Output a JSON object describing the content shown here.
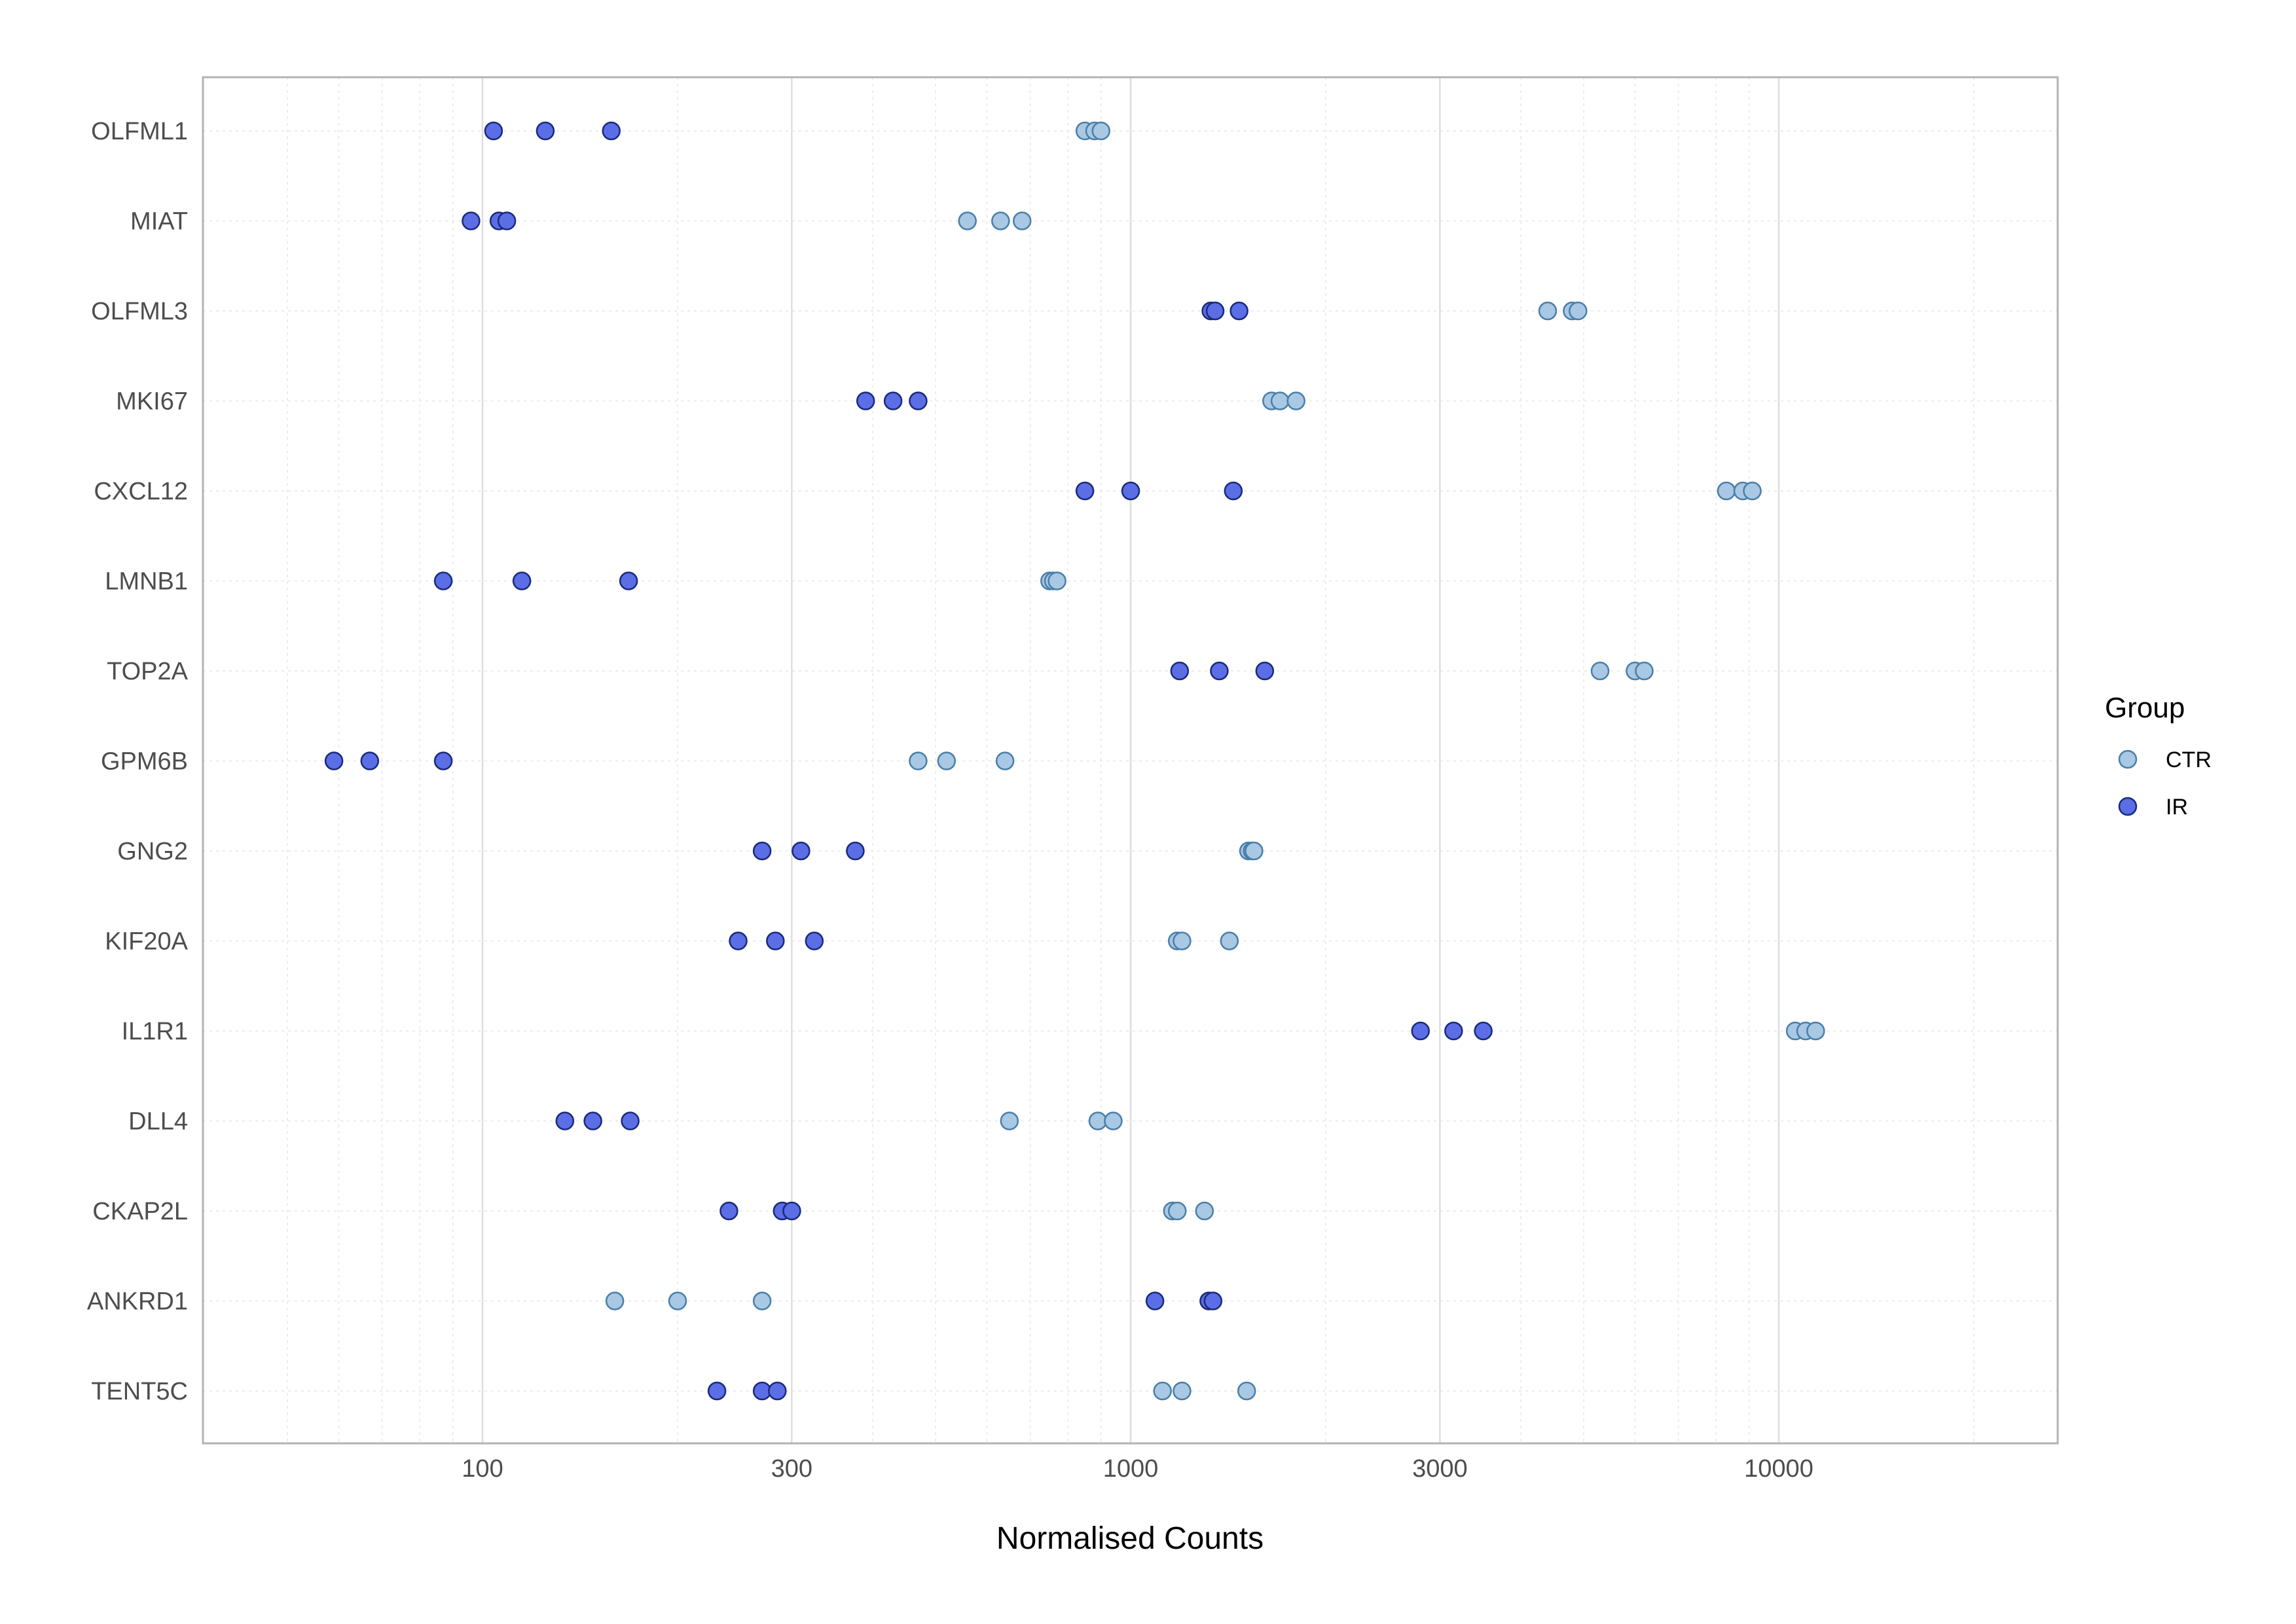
{
  "chart_data": {
    "type": "scatter",
    "xlabel": "Normalised Counts",
    "ylabel": "",
    "x_scale": "log10",
    "xlim": [
      50,
      28000
    ],
    "x_ticks": [
      100,
      300,
      1000,
      3000,
      10000
    ],
    "x_tick_labels": [
      "100",
      "300",
      "1000",
      "3000",
      "10000"
    ],
    "grid": true,
    "legend": {
      "title": "Group",
      "position": "right"
    },
    "categories": [
      "OLFML1",
      "MIAT",
      "OLFML3",
      "MKI67",
      "CXCL12",
      "LMNB1",
      "TOP2A",
      "GPM6B",
      "GNG2",
      "KIF20A",
      "IL1R1",
      "DLL4",
      "CKAP2L",
      "ANKRD1",
      "TENT5C"
    ],
    "series": [
      {
        "name": "CTR",
        "color": "#a8c8e4",
        "stroke": "#4a7fa8",
        "points": [
          {
            "gene": "OLFML1",
            "values": [
              850,
              880,
              900
            ]
          },
          {
            "gene": "MIAT",
            "values": [
              560,
              630,
              680
            ]
          },
          {
            "gene": "OLFML3",
            "values": [
              4400,
              4800,
              4900
            ]
          },
          {
            "gene": "MKI67",
            "values": [
              1650,
              1700,
              1800
            ]
          },
          {
            "gene": "CXCL12",
            "values": [
              8300,
              8800,
              9100
            ]
          },
          {
            "gene": "LMNB1",
            "values": [
              750,
              760,
              770
            ]
          },
          {
            "gene": "TOP2A",
            "values": [
              5300,
              6000,
              6200
            ]
          },
          {
            "gene": "GPM6B",
            "values": [
              470,
              520,
              640
            ]
          },
          {
            "gene": "GNG2",
            "values": [
              1520,
              1540,
              1550
            ]
          },
          {
            "gene": "KIF20A",
            "values": [
              1180,
              1200,
              1420
            ]
          },
          {
            "gene": "IL1R1",
            "values": [
              10600,
              11000,
              11400
            ]
          },
          {
            "gene": "DLL4",
            "values": [
              650,
              890,
              940
            ]
          },
          {
            "gene": "CKAP2L",
            "values": [
              1160,
              1180,
              1300
            ]
          },
          {
            "gene": "ANKRD1",
            "values": [
              160,
              200,
              270
            ]
          },
          {
            "gene": "TENT5C",
            "values": [
              1120,
              1200,
              1510
            ]
          }
        ]
      },
      {
        "name": "IR",
        "color": "#5b6ee6",
        "stroke": "#1a2a7a",
        "points": [
          {
            "gene": "OLFML1",
            "values": [
              104,
              125,
              158
            ]
          },
          {
            "gene": "MIAT",
            "values": [
              96,
              106,
              109
            ]
          },
          {
            "gene": "OLFML3",
            "values": [
              1330,
              1350,
              1470
            ]
          },
          {
            "gene": "MKI67",
            "values": [
              390,
              430,
              470
            ]
          },
          {
            "gene": "CXCL12",
            "values": [
              850,
              1000,
              1440
            ]
          },
          {
            "gene": "LMNB1",
            "values": [
              87,
              115,
              168
            ]
          },
          {
            "gene": "TOP2A",
            "values": [
              1190,
              1370,
              1610
            ]
          },
          {
            "gene": "GPM6B",
            "values": [
              59,
              67,
              87
            ]
          },
          {
            "gene": "GNG2",
            "values": [
              270,
              310,
              376
            ]
          },
          {
            "gene": "KIF20A",
            "values": [
              248,
              283,
              325
            ]
          },
          {
            "gene": "IL1R1",
            "values": [
              2800,
              3150,
              3500
            ]
          },
          {
            "gene": "DLL4",
            "values": [
              134,
              148,
              169
            ]
          },
          {
            "gene": "CKAP2L",
            "values": [
              240,
              290,
              300
            ]
          },
          {
            "gene": "ANKRD1",
            "values": [
              1090,
              1320,
              1340
            ]
          },
          {
            "gene": "TENT5C",
            "values": [
              230,
              270,
              285
            ]
          }
        ]
      }
    ]
  }
}
